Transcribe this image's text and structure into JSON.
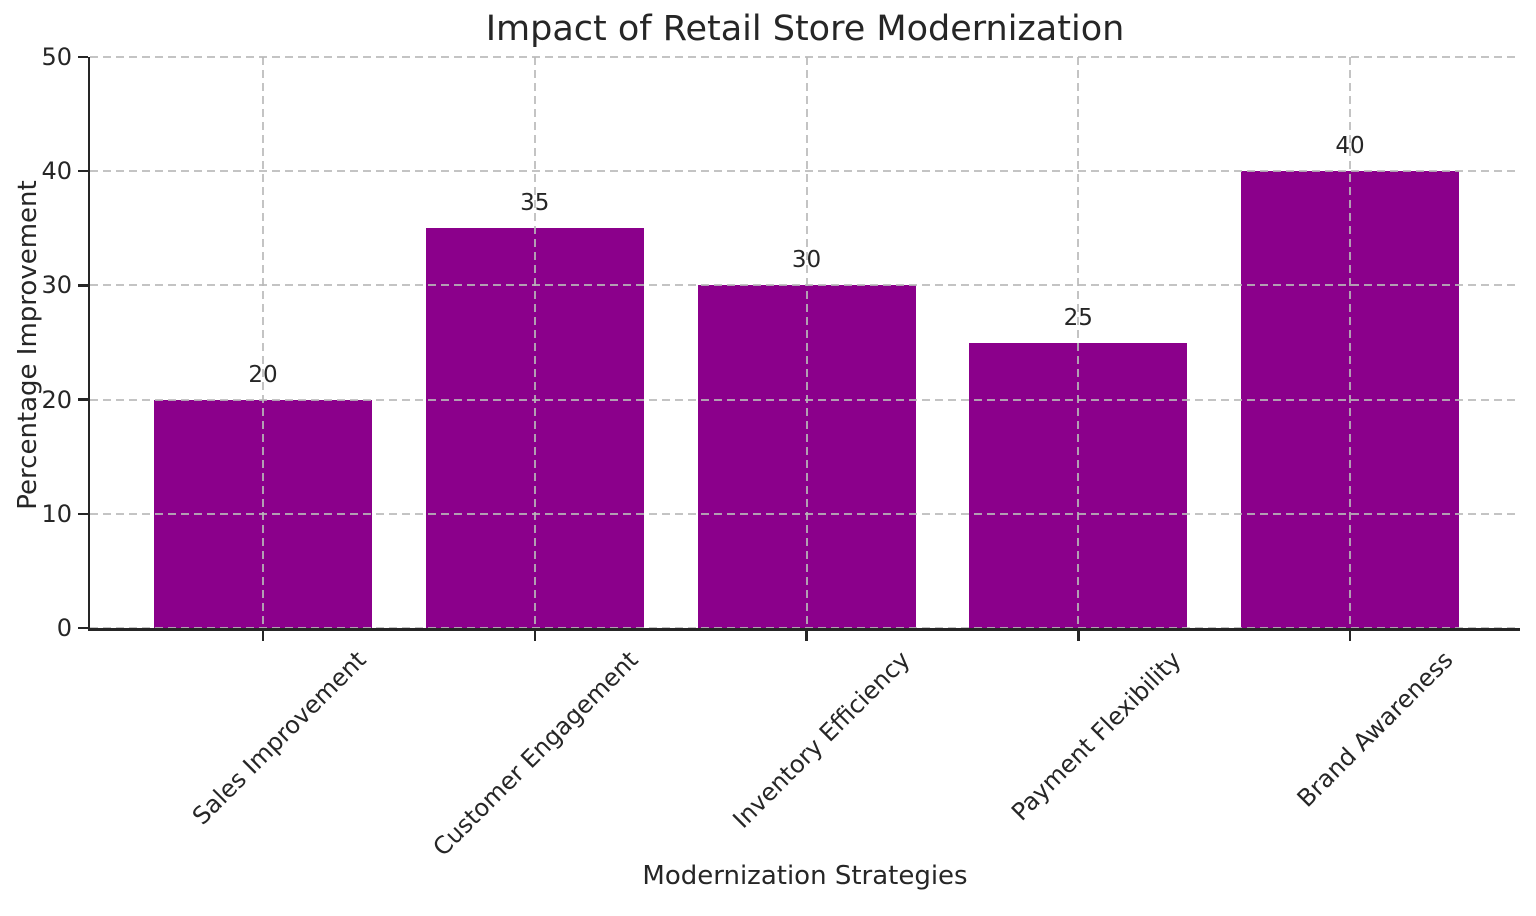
{
  "chart_data": {
    "type": "bar",
    "title": "Impact of Retail Store Modernization",
    "xlabel": "Modernization Strategies",
    "ylabel": "Percentage Improvement",
    "categories": [
      "Sales Improvement",
      "Customer Engagement",
      "Inventory Efficiency",
      "Payment Flexibility",
      "Brand Awareness"
    ],
    "values": [
      20,
      35,
      30,
      25,
      40
    ],
    "bar_value_labels": [
      "20",
      "35",
      "30",
      "25",
      "40"
    ],
    "ylim": [
      0,
      50
    ],
    "yticks": [
      0,
      10,
      20,
      30,
      40,
      50
    ],
    "ytick_labels": [
      "0",
      "10",
      "20",
      "30",
      "40",
      "50"
    ],
    "xtick_rotation_deg": 45,
    "grid": {
      "style": "dashed",
      "axes": "both",
      "drawn_above_bars": true
    },
    "legend": "none",
    "colors": {
      "bar": "#8B008B",
      "text": "#262626",
      "grid": "#b9b9b9",
      "spine": "#262626",
      "background": "#ffffff"
    }
  }
}
